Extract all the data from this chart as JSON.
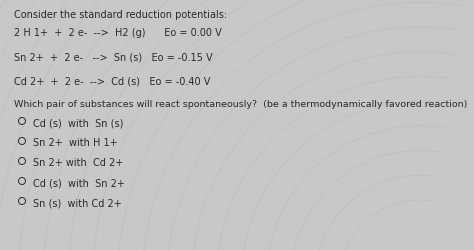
{
  "background_color": "#c8c8c8",
  "text_color": "#2a2a2a",
  "title_text": "Consider the standard reduction potentials:",
  "reactions": [
    "2 H 1+  +  2 e-  -->  H2 (g)      Eo = 0.00 V",
    "Sn 2+  +  2 e-   -->  Sn (s)   Eo = -0.15 V",
    "Cd 2+  +  2 e-  -->  Cd (s)   Eo = -0.40 V"
  ],
  "question": "Which pair of substances will react spontaneously?  (be a thermodynamically favored reaction)",
  "options": [
    "Cd (s)  with  Sn (s)",
    "Sn 2+  with H 1+",
    "Sn 2+ with  Cd 2+",
    "Cd (s)  with  Sn 2+",
    "Sn (s)  with Cd 2+"
  ],
  "title_fontsize": 7.0,
  "reaction_fontsize": 7.0,
  "question_fontsize": 6.8,
  "option_fontsize": 7.0,
  "figwidth": 4.74,
  "figheight": 2.5,
  "dpi": 100
}
